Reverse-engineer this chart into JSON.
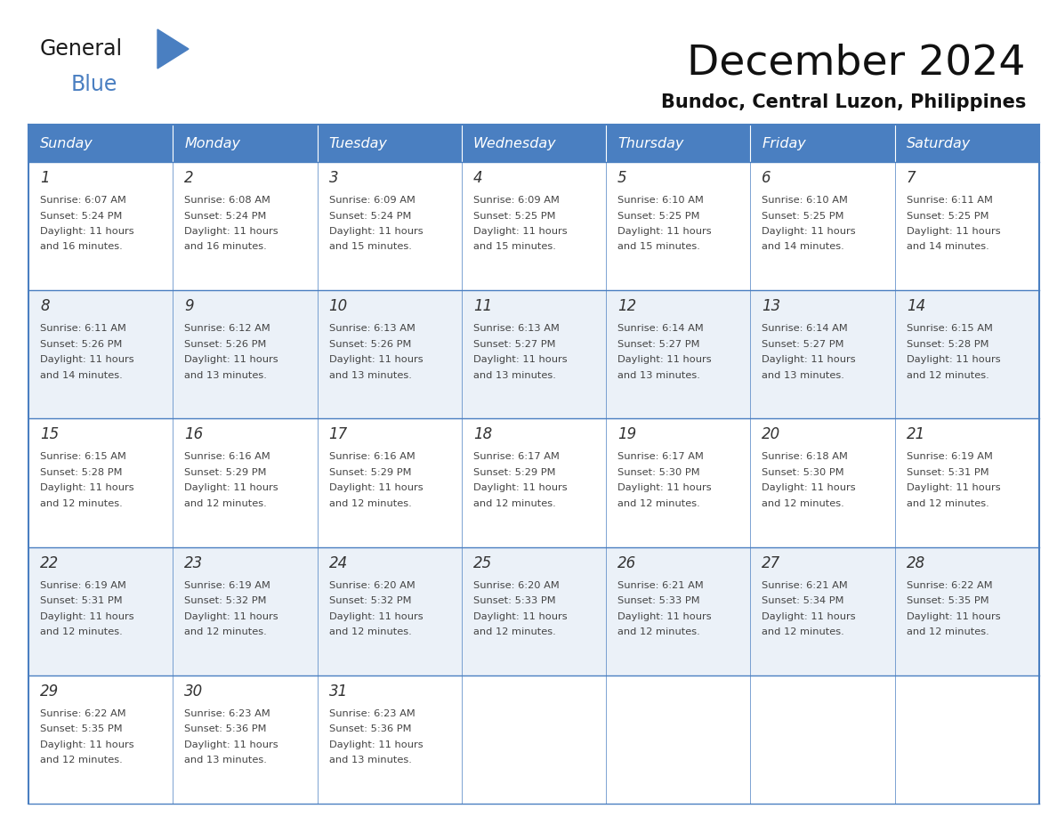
{
  "title": "December 2024",
  "subtitle": "Bundoc, Central Luzon, Philippines",
  "header_color": "#4A7FC1",
  "header_text_color": "#FFFFFF",
  "border_color": "#4A7FC1",
  "text_color": "#333333",
  "day_headers": [
    "Sunday",
    "Monday",
    "Tuesday",
    "Wednesday",
    "Thursday",
    "Friday",
    "Saturday"
  ],
  "weeks": [
    [
      {
        "day": "1",
        "sunrise": "6:07 AM",
        "sunset": "5:24 PM",
        "daylight_h": "11 hours",
        "daylight_m": "and 16 minutes."
      },
      {
        "day": "2",
        "sunrise": "6:08 AM",
        "sunset": "5:24 PM",
        "daylight_h": "11 hours",
        "daylight_m": "and 16 minutes."
      },
      {
        "day": "3",
        "sunrise": "6:09 AM",
        "sunset": "5:24 PM",
        "daylight_h": "11 hours",
        "daylight_m": "and 15 minutes."
      },
      {
        "day": "4",
        "sunrise": "6:09 AM",
        "sunset": "5:25 PM",
        "daylight_h": "11 hours",
        "daylight_m": "and 15 minutes."
      },
      {
        "day": "5",
        "sunrise": "6:10 AM",
        "sunset": "5:25 PM",
        "daylight_h": "11 hours",
        "daylight_m": "and 15 minutes."
      },
      {
        "day": "6",
        "sunrise": "6:10 AM",
        "sunset": "5:25 PM",
        "daylight_h": "11 hours",
        "daylight_m": "and 14 minutes."
      },
      {
        "day": "7",
        "sunrise": "6:11 AM",
        "sunset": "5:25 PM",
        "daylight_h": "11 hours",
        "daylight_m": "and 14 minutes."
      }
    ],
    [
      {
        "day": "8",
        "sunrise": "6:11 AM",
        "sunset": "5:26 PM",
        "daylight_h": "11 hours",
        "daylight_m": "and 14 minutes."
      },
      {
        "day": "9",
        "sunrise": "6:12 AM",
        "sunset": "5:26 PM",
        "daylight_h": "11 hours",
        "daylight_m": "and 13 minutes."
      },
      {
        "day": "10",
        "sunrise": "6:13 AM",
        "sunset": "5:26 PM",
        "daylight_h": "11 hours",
        "daylight_m": "and 13 minutes."
      },
      {
        "day": "11",
        "sunrise": "6:13 AM",
        "sunset": "5:27 PM",
        "daylight_h": "11 hours",
        "daylight_m": "and 13 minutes."
      },
      {
        "day": "12",
        "sunrise": "6:14 AM",
        "sunset": "5:27 PM",
        "daylight_h": "11 hours",
        "daylight_m": "and 13 minutes."
      },
      {
        "day": "13",
        "sunrise": "6:14 AM",
        "sunset": "5:27 PM",
        "daylight_h": "11 hours",
        "daylight_m": "and 13 minutes."
      },
      {
        "day": "14",
        "sunrise": "6:15 AM",
        "sunset": "5:28 PM",
        "daylight_h": "11 hours",
        "daylight_m": "and 12 minutes."
      }
    ],
    [
      {
        "day": "15",
        "sunrise": "6:15 AM",
        "sunset": "5:28 PM",
        "daylight_h": "11 hours",
        "daylight_m": "and 12 minutes."
      },
      {
        "day": "16",
        "sunrise": "6:16 AM",
        "sunset": "5:29 PM",
        "daylight_h": "11 hours",
        "daylight_m": "and 12 minutes."
      },
      {
        "day": "17",
        "sunrise": "6:16 AM",
        "sunset": "5:29 PM",
        "daylight_h": "11 hours",
        "daylight_m": "and 12 minutes."
      },
      {
        "day": "18",
        "sunrise": "6:17 AM",
        "sunset": "5:29 PM",
        "daylight_h": "11 hours",
        "daylight_m": "and 12 minutes."
      },
      {
        "day": "19",
        "sunrise": "6:17 AM",
        "sunset": "5:30 PM",
        "daylight_h": "11 hours",
        "daylight_m": "and 12 minutes."
      },
      {
        "day": "20",
        "sunrise": "6:18 AM",
        "sunset": "5:30 PM",
        "daylight_h": "11 hours",
        "daylight_m": "and 12 minutes."
      },
      {
        "day": "21",
        "sunrise": "6:19 AM",
        "sunset": "5:31 PM",
        "daylight_h": "11 hours",
        "daylight_m": "and 12 minutes."
      }
    ],
    [
      {
        "day": "22",
        "sunrise": "6:19 AM",
        "sunset": "5:31 PM",
        "daylight_h": "11 hours",
        "daylight_m": "and 12 minutes."
      },
      {
        "day": "23",
        "sunrise": "6:19 AM",
        "sunset": "5:32 PM",
        "daylight_h": "11 hours",
        "daylight_m": "and 12 minutes."
      },
      {
        "day": "24",
        "sunrise": "6:20 AM",
        "sunset": "5:32 PM",
        "daylight_h": "11 hours",
        "daylight_m": "and 12 minutes."
      },
      {
        "day": "25",
        "sunrise": "6:20 AM",
        "sunset": "5:33 PM",
        "daylight_h": "11 hours",
        "daylight_m": "and 12 minutes."
      },
      {
        "day": "26",
        "sunrise": "6:21 AM",
        "sunset": "5:33 PM",
        "daylight_h": "11 hours",
        "daylight_m": "and 12 minutes."
      },
      {
        "day": "27",
        "sunrise": "6:21 AM",
        "sunset": "5:34 PM",
        "daylight_h": "11 hours",
        "daylight_m": "and 12 minutes."
      },
      {
        "day": "28",
        "sunrise": "6:22 AM",
        "sunset": "5:35 PM",
        "daylight_h": "11 hours",
        "daylight_m": "and 12 minutes."
      }
    ],
    [
      {
        "day": "29",
        "sunrise": "6:22 AM",
        "sunset": "5:35 PM",
        "daylight_h": "11 hours",
        "daylight_m": "and 12 minutes."
      },
      {
        "day": "30",
        "sunrise": "6:23 AM",
        "sunset": "5:36 PM",
        "daylight_h": "11 hours",
        "daylight_m": "and 13 minutes."
      },
      {
        "day": "31",
        "sunrise": "6:23 AM",
        "sunset": "5:36 PM",
        "daylight_h": "11 hours",
        "daylight_m": "and 13 minutes."
      },
      null,
      null,
      null,
      null
    ]
  ],
  "fig_width": 11.88,
  "fig_height": 9.18,
  "dpi": 100
}
